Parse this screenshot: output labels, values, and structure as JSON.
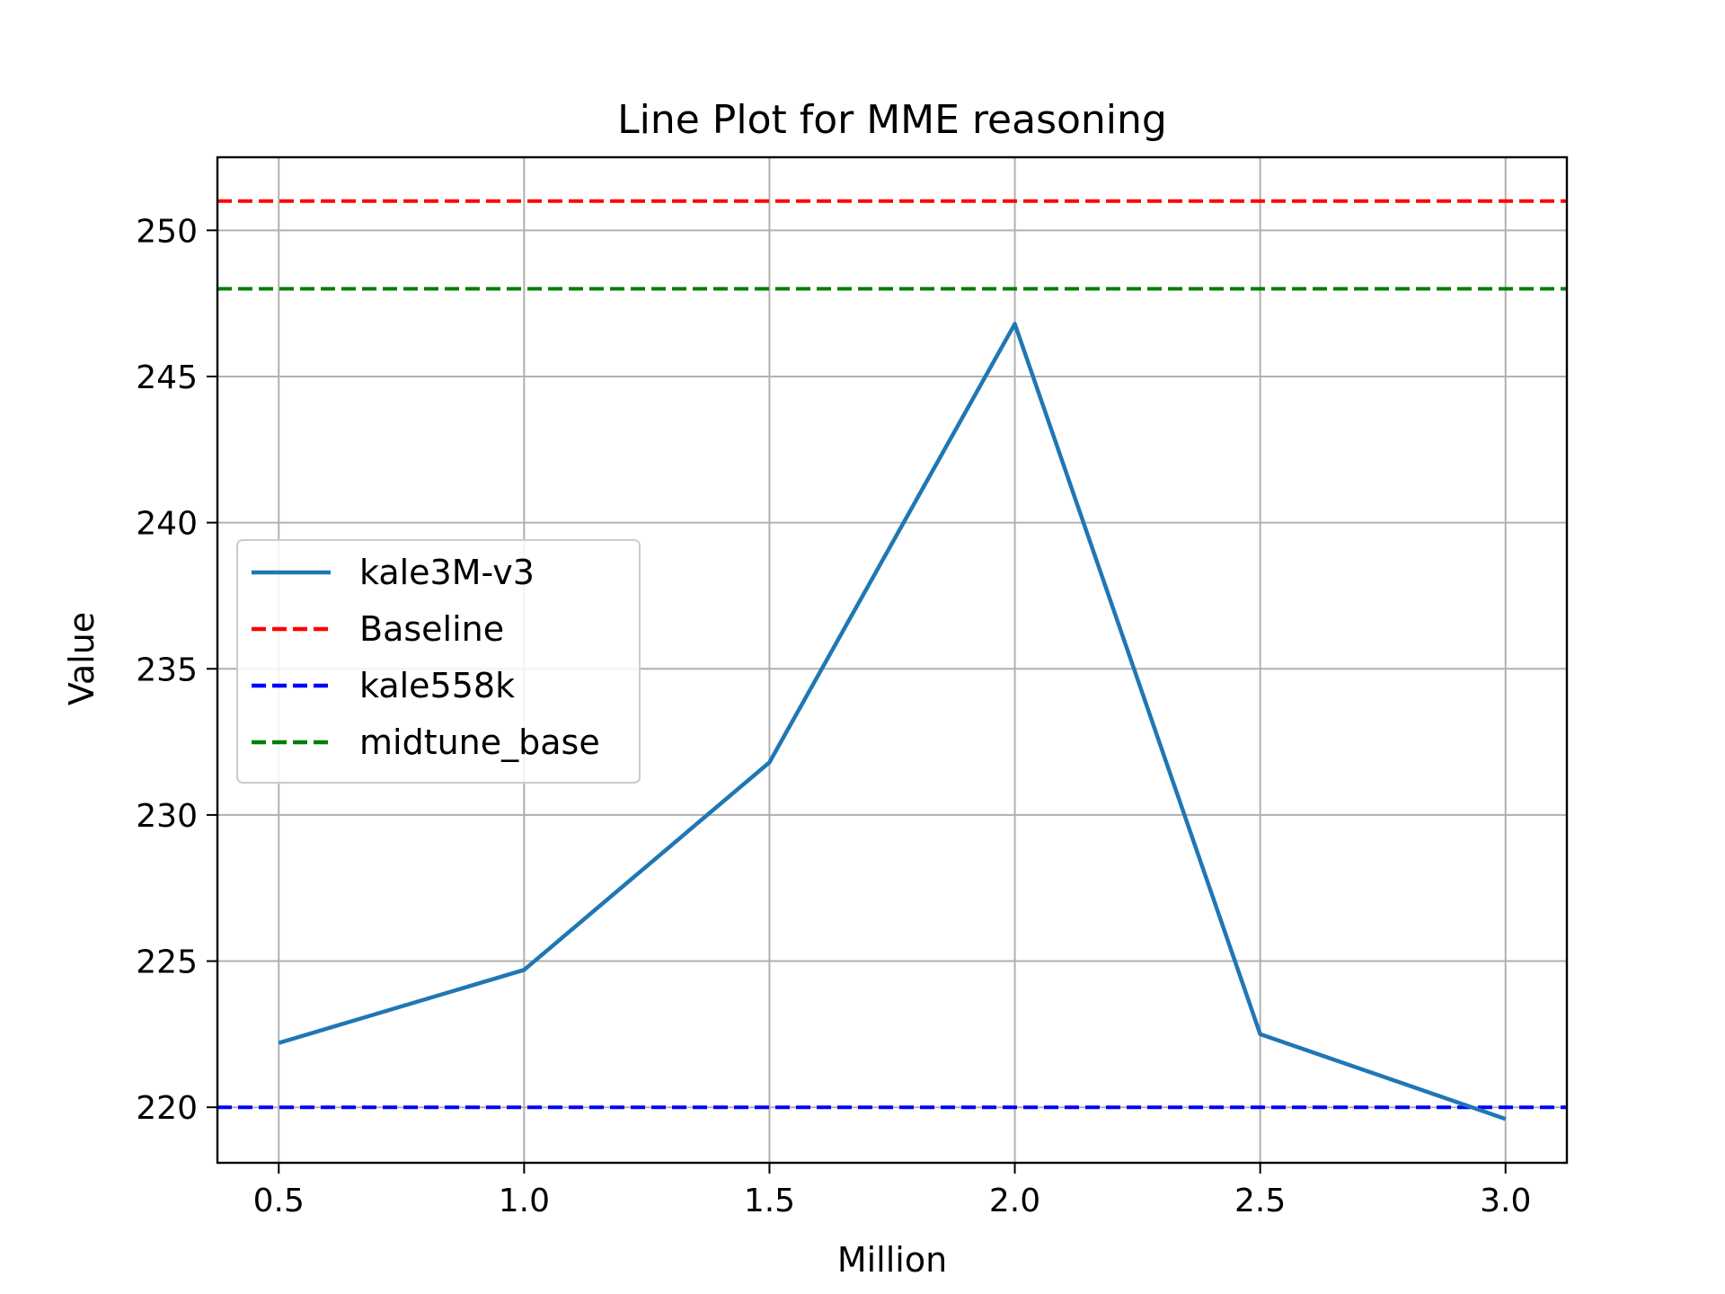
{
  "chart_data": {
    "type": "line",
    "title": "Line Plot for MME reasoning",
    "xlabel": "Million",
    "ylabel": "Value",
    "xlim": [
      0.375,
      3.125
    ],
    "ylim": [
      218.1,
      252.5
    ],
    "x_ticks": [
      0.5,
      1.0,
      1.5,
      2.0,
      2.5,
      3.0
    ],
    "x_tick_labels": [
      "0.5",
      "1.0",
      "1.5",
      "2.0",
      "2.5",
      "3.0"
    ],
    "y_ticks": [
      220,
      225,
      230,
      235,
      240,
      245,
      250
    ],
    "y_tick_labels": [
      "220",
      "225",
      "230",
      "235",
      "240",
      "245",
      "250"
    ],
    "grid": true,
    "legend_position": "center-left",
    "series": [
      {
        "name": "kale3M-v3",
        "style": "solid",
        "color": "#1f77b4",
        "x": [
          0.5,
          1.0,
          1.5,
          2.0,
          2.5,
          3.0
        ],
        "values": [
          222.2,
          224.7,
          231.8,
          246.8,
          222.5,
          219.6
        ]
      },
      {
        "name": "Baseline",
        "style": "dashed",
        "color": "#ff0000",
        "hline": 251.0
      },
      {
        "name": "kale558k",
        "style": "dashed",
        "color": "#0000ff",
        "hline": 220.0
      },
      {
        "name": "midtune_base",
        "style": "dashed",
        "color": "#008000",
        "hline": 248.0
      }
    ]
  }
}
